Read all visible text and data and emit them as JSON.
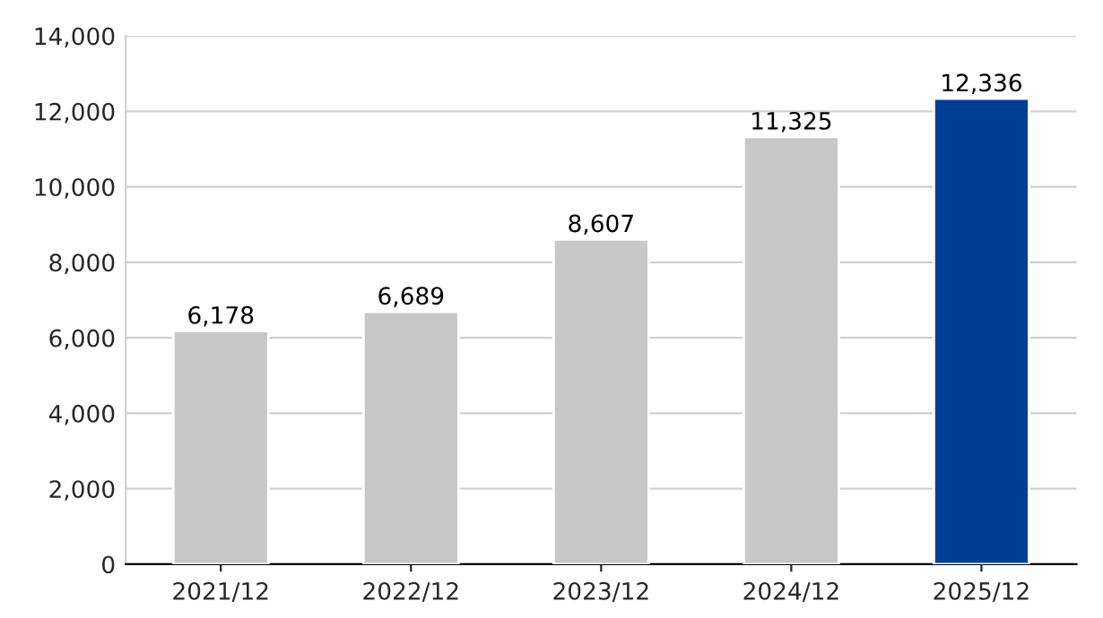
{
  "chart_data": {
    "type": "bar",
    "categories": [
      "2021/12",
      "2022/12",
      "2023/12",
      "2024/12",
      "2025/12"
    ],
    "values": [
      6178,
      6689,
      8607,
      11325,
      12336
    ],
    "colors": [
      "#c8c8c8",
      "#c8c8c8",
      "#c8c8c8",
      "#c8c8c8",
      "#003f98"
    ],
    "value_labels": [
      "6,178",
      "6,689",
      "8,607",
      "11,325",
      "12,336"
    ],
    "ylim": [
      0,
      14000
    ],
    "yticks": [
      {
        "value": 0,
        "label": "0"
      },
      {
        "value": 2000,
        "label": "2,000"
      },
      {
        "value": 4000,
        "label": "4,000"
      },
      {
        "value": 6000,
        "label": "6,000"
      },
      {
        "value": 8000,
        "label": "8,000"
      },
      {
        "value": 10000,
        "label": "10,000"
      },
      {
        "value": 12000,
        "label": "12,000"
      },
      {
        "value": 14000,
        "label": "14,000"
      }
    ],
    "grid": "y"
  }
}
